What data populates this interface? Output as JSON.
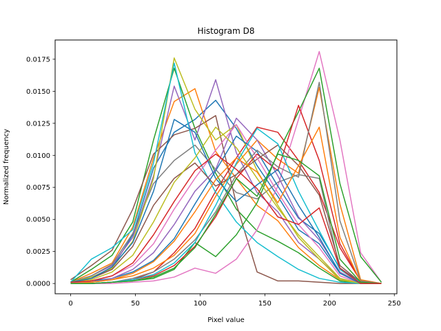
{
  "chart_data": {
    "type": "line",
    "title": "Histogram D8",
    "xlabel": "Pixel value",
    "ylabel": "Normalized frequency",
    "xlim": [
      -12,
      252
    ],
    "ylim": [
      -0.0008,
      0.019
    ],
    "x_ticks": [
      0,
      50,
      100,
      150,
      200,
      250
    ],
    "y_ticks": [
      0.0,
      0.0025,
      0.005,
      0.0075,
      0.01,
      0.0125,
      0.015,
      0.0175
    ],
    "x_tick_labels": [
      "0",
      "50",
      "100",
      "150",
      "200",
      "250"
    ],
    "y_tick_labels": [
      "0.0000",
      "0.0025",
      "0.0050",
      "0.0075",
      "0.0100",
      "0.0125",
      "0.0150",
      "0.0175"
    ],
    "grid": false,
    "legend": "none",
    "x": [
      0,
      16,
      32,
      48,
      64,
      80,
      96,
      112,
      128,
      144,
      160,
      176,
      192,
      208,
      224,
      240
    ],
    "palette": [
      "#1f77b4",
      "#ff7f0e",
      "#2ca02c",
      "#d62728",
      "#9467bd",
      "#8c564b",
      "#e377c2",
      "#7f7f7f",
      "#bcbd22",
      "#17becf"
    ],
    "series": [
      {
        "values": [
          0.0001,
          0.0004,
          0.0012,
          0.0038,
          0.009,
          0.0118,
          0.0128,
          0.0143,
          0.0121,
          0.0092,
          0.0068,
          0.0042,
          0.0031,
          0.0008,
          0.0001,
          0.0
        ]
      },
      {
        "values": [
          0.0001,
          0.0008,
          0.0016,
          0.0044,
          0.0098,
          0.0142,
          0.0152,
          0.0103,
          0.0082,
          0.0061,
          0.0049,
          0.0028,
          0.0014,
          0.0003,
          0.0,
          0.0
        ]
      },
      {
        "values": [
          0.0001,
          0.0011,
          0.0022,
          0.0048,
          0.0112,
          0.0168,
          0.0121,
          0.0086,
          0.0058,
          0.0041,
          0.0033,
          0.0024,
          0.0012,
          0.0002,
          0.0,
          0.0
        ]
      },
      {
        "values": [
          0.0,
          0.0,
          0.0001,
          0.0003,
          0.0009,
          0.0024,
          0.0043,
          0.0072,
          0.0098,
          0.0122,
          0.0118,
          0.0096,
          0.0071,
          0.0028,
          0.0002,
          0.0
        ]
      },
      {
        "values": [
          0.0001,
          0.0006,
          0.0014,
          0.0036,
          0.0084,
          0.0154,
          0.0112,
          0.0159,
          0.0102,
          0.0071,
          0.0056,
          0.0032,
          0.0019,
          0.0004,
          0.0,
          0.0
        ]
      },
      {
        "values": [
          0.0003,
          0.0014,
          0.0026,
          0.0058,
          0.0101,
          0.0116,
          0.0121,
          0.0131,
          0.0062,
          0.0009,
          0.0002,
          0.0002,
          0.0001,
          0.0,
          0.0,
          0.0
        ]
      },
      {
        "values": [
          0.0,
          0.0,
          0.0,
          0.0001,
          0.0002,
          0.0005,
          0.0012,
          0.0008,
          0.0019,
          0.0042,
          0.0076,
          0.0128,
          0.0181,
          0.0112,
          0.0024,
          0.0001
        ]
      },
      {
        "values": [
          0.0001,
          0.0006,
          0.0015,
          0.0039,
          0.0078,
          0.0096,
          0.0108,
          0.0089,
          0.0071,
          0.0066,
          0.0079,
          0.0085,
          0.0082,
          0.0011,
          0.0,
          0.0
        ]
      },
      {
        "values": [
          0.0001,
          0.0005,
          0.0012,
          0.0033,
          0.0082,
          0.0176,
          0.0136,
          0.0112,
          0.0124,
          0.0088,
          0.0061,
          0.0036,
          0.0019,
          0.0003,
          0.0,
          0.0
        ]
      },
      {
        "values": [
          0.0001,
          0.0019,
          0.0028,
          0.0042,
          0.0094,
          0.0172,
          0.0102,
          0.0071,
          0.0048,
          0.0032,
          0.0021,
          0.0011,
          0.0004,
          0.0001,
          0.0,
          0.0
        ]
      },
      {
        "values": [
          0.0,
          0.0002,
          0.0004,
          0.0009,
          0.0018,
          0.0035,
          0.0062,
          0.0088,
          0.0115,
          0.0103,
          0.0076,
          0.0051,
          0.0039,
          0.0012,
          0.0001,
          0.0
        ]
      },
      {
        "values": [
          0.0,
          0.0001,
          0.0003,
          0.0006,
          0.0012,
          0.0022,
          0.0039,
          0.0068,
          0.0093,
          0.0112,
          0.0097,
          0.0086,
          0.0153,
          0.0062,
          0.0003,
          0.0
        ]
      },
      {
        "values": [
          0.0,
          0.0,
          0.0001,
          0.0002,
          0.0004,
          0.0011,
          0.0032,
          0.0021,
          0.0038,
          0.0063,
          0.0102,
          0.0134,
          0.0168,
          0.0078,
          0.0021,
          0.0001
        ]
      },
      {
        "values": [
          0.0,
          0.0,
          0.0001,
          0.0003,
          0.0006,
          0.0014,
          0.0029,
          0.0052,
          0.0082,
          0.0101,
          0.0088,
          0.0139,
          0.0096,
          0.0031,
          0.0002,
          0.0
        ]
      },
      {
        "values": [
          0.0,
          0.0001,
          0.0004,
          0.0011,
          0.0024,
          0.0046,
          0.0072,
          0.0089,
          0.0129,
          0.0112,
          0.0084,
          0.0052,
          0.0034,
          0.0009,
          0.0,
          0.0
        ]
      },
      {
        "values": [
          0.0001,
          0.0004,
          0.0011,
          0.0029,
          0.0061,
          0.0082,
          0.0094,
          0.0076,
          0.0085,
          0.0097,
          0.0108,
          0.0092,
          0.0069,
          0.0014,
          0.0001,
          0.0
        ]
      },
      {
        "values": [
          0.0,
          0.0002,
          0.0006,
          0.0014,
          0.0031,
          0.0058,
          0.0082,
          0.0104,
          0.0124,
          0.0098,
          0.0071,
          0.0046,
          0.0028,
          0.0006,
          0.0,
          0.0
        ]
      },
      {
        "values": [
          0.0,
          0.0,
          0.0001,
          0.0004,
          0.0009,
          0.0019,
          0.0034,
          0.0056,
          0.0085,
          0.0104,
          0.0091,
          0.0083,
          0.0157,
          0.0049,
          0.0002,
          0.0
        ]
      },
      {
        "values": [
          0.0001,
          0.0003,
          0.0009,
          0.0022,
          0.0048,
          0.0079,
          0.0098,
          0.0122,
          0.0106,
          0.0082,
          0.0059,
          0.0038,
          0.0021,
          0.0004,
          0.0,
          0.0
        ]
      },
      {
        "values": [
          0.0,
          0.0,
          0.0001,
          0.0003,
          0.0007,
          0.0016,
          0.0032,
          0.0061,
          0.0094,
          0.0121,
          0.0109,
          0.0072,
          0.0041,
          0.0011,
          0.0001,
          0.0
        ]
      },
      {
        "values": [
          0.0001,
          0.0004,
          0.0013,
          0.0032,
          0.0072,
          0.0128,
          0.0118,
          0.0082,
          0.0064,
          0.0077,
          0.0089,
          0.0061,
          0.0036,
          0.0008,
          0.0,
          0.0
        ]
      },
      {
        "values": [
          0.0,
          0.0001,
          0.0003,
          0.0008,
          0.0017,
          0.0033,
          0.0056,
          0.0081,
          0.0098,
          0.0087,
          0.0063,
          0.0092,
          0.0122,
          0.0036,
          0.0001,
          0.0
        ]
      },
      {
        "values": [
          0.0,
          0.0,
          0.0001,
          0.0002,
          0.0005,
          0.0012,
          0.0028,
          0.0054,
          0.0082,
          0.0068,
          0.0101,
          0.0096,
          0.0084,
          0.0019,
          0.0001,
          0.0
        ]
      },
      {
        "values": [
          0.0001,
          0.0002,
          0.0006,
          0.0016,
          0.0038,
          0.0064,
          0.0088,
          0.0101,
          0.0089,
          0.0074,
          0.0052,
          0.0046,
          0.0059,
          0.0012,
          0.0,
          0.0
        ]
      }
    ]
  }
}
